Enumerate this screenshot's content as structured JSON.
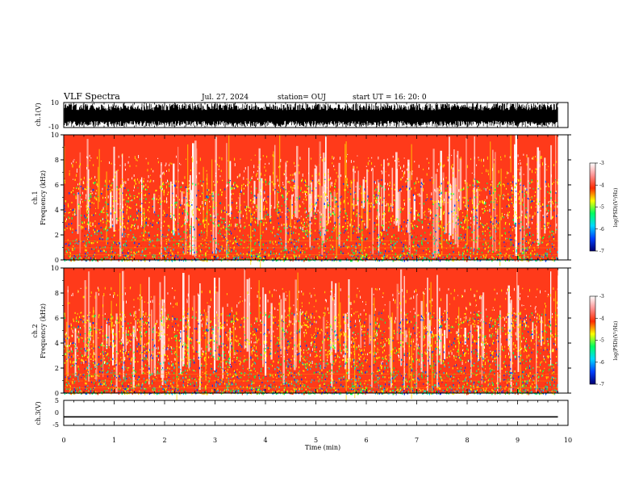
{
  "header": {
    "title": "VLF Spectra",
    "date": "Jul. 27, 2024",
    "station": "station= OUJ",
    "start": "start UT =  16: 20: 0"
  },
  "chart_data": [
    {
      "type": "line",
      "panel": "ch1-waveform",
      "ylabel": "ch.1(V)",
      "ylim": [
        -10,
        10
      ],
      "yticks": [
        "10",
        "-10"
      ],
      "xlim": [
        0,
        10
      ],
      "note": "dense full-scale waveform from 0 to ~9.8 min"
    },
    {
      "type": "heatmap",
      "panel": "ch1-spectrogram",
      "ylabel_top": "ch.1",
      "ylabel": "Frequency (kHz)",
      "ylim": [
        0,
        10
      ],
      "yticks": [
        "0",
        "2",
        "4",
        "6",
        "8",
        "10"
      ],
      "xlim": [
        0,
        10
      ],
      "data_end_min": 9.8
    },
    {
      "type": "heatmap",
      "panel": "ch2-spectrogram",
      "ylabel_top": "ch.2",
      "ylabel": "Frequency (kHz)",
      "ylim": [
        0,
        10
      ],
      "yticks": [
        "0",
        "2",
        "4",
        "6",
        "8",
        "10"
      ],
      "xlim": [
        0,
        10
      ],
      "data_end_min": 9.8
    },
    {
      "type": "line",
      "panel": "ch3-waveform",
      "ylabel": "ch.3(V)",
      "ylim": [
        -5,
        5
      ],
      "yticks": [
        "5",
        "0",
        "-5"
      ],
      "xlim": [
        0,
        10
      ],
      "series": [
        {
          "x": [
            0,
            9.8
          ],
          "y": [
            -1.6,
            -1.6
          ]
        }
      ]
    }
  ],
  "xaxis": {
    "label": "Time (min)",
    "ticks": [
      "0",
      "1",
      "2",
      "3",
      "4",
      "5",
      "6",
      "7",
      "8",
      "9",
      "10"
    ]
  },
  "colorbar": {
    "label": "log(PSD)(V²/Hz)",
    "ticks": [
      "-3",
      "-4",
      "-5",
      "-6",
      "-7"
    ],
    "colors": [
      "#000070",
      "#0040ff",
      "#00d8ff",
      "#00ff60",
      "#ffff00",
      "#ff2a00",
      "#ff9090",
      "#ffffff"
    ]
  }
}
